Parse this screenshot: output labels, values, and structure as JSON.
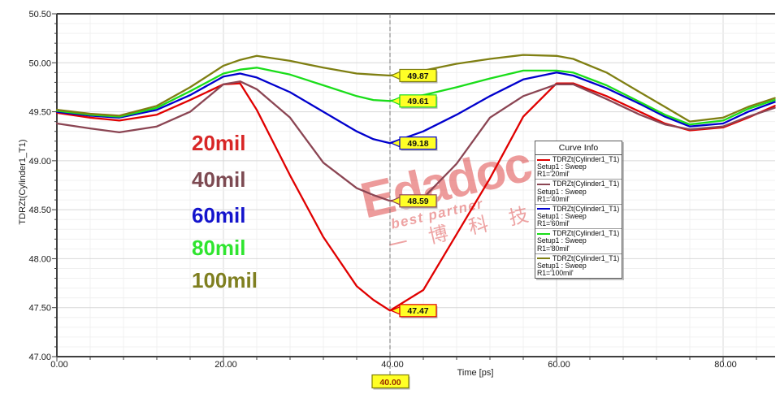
{
  "chart_data": {
    "type": "line",
    "title": "",
    "xlabel": "Time [ps]",
    "ylabel": "TDRZt(Cylinder1_T1)",
    "xlim": [
      0,
      86.2
    ],
    "ylim": [
      47.0,
      50.5
    ],
    "grid": true,
    "legend_position": "right-middle",
    "x_ticks": [
      0,
      20,
      40,
      60,
      80
    ],
    "x_tick_labels": [
      "0.00",
      "20.00",
      "40.00",
      "60.00",
      "80.00"
    ],
    "y_ticks": [
      50.5,
      50.0,
      49.5,
      49.0,
      48.5,
      48.0,
      47.5,
      47.0
    ],
    "y_tick_labels": [
      "50.50",
      "50.00",
      "49.50",
      "49.00",
      "48.50",
      "48.00",
      "47.50",
      "47.00"
    ],
    "marker": {
      "x": 40,
      "x_label": "40.00"
    },
    "x": [
      0,
      4,
      7.5,
      12,
      16,
      20,
      22,
      24,
      28,
      32,
      36,
      38,
      40,
      44,
      48,
      52,
      56,
      60,
      62,
      66,
      70,
      73,
      76,
      80,
      83,
      86.2
    ],
    "series": [
      {
        "id": "20mil",
        "color": "#e00000",
        "label_color": "#d82626",
        "annotation": "20mil",
        "marker_label": "47.47",
        "legend": {
          "name": "TDRZt(Cylinder1_T1)",
          "setup": "Setup1 : Sweep",
          "variation": "R1='20mil'"
        },
        "values": [
          49.49,
          49.44,
          49.41,
          49.47,
          49.62,
          49.78,
          49.79,
          49.52,
          48.85,
          48.22,
          47.72,
          47.58,
          47.47,
          47.68,
          48.25,
          48.82,
          49.45,
          49.79,
          49.79,
          49.66,
          49.5,
          49.38,
          49.31,
          49.34,
          49.44,
          49.56
        ]
      },
      {
        "id": "40mil",
        "color": "#8b4553",
        "label_color": "#7d4a52",
        "annotation": "40mil",
        "marker_label": "48.59",
        "legend": {
          "name": "TDRZt(Cylinder1_T1)",
          "setup": "Setup1 : Sweep",
          "variation": "R1='40mil'"
        },
        "values": [
          49.38,
          49.33,
          49.29,
          49.35,
          49.5,
          49.78,
          49.81,
          49.73,
          49.44,
          48.98,
          48.72,
          48.65,
          48.59,
          48.62,
          48.97,
          49.44,
          49.66,
          49.78,
          49.78,
          49.63,
          49.47,
          49.37,
          49.32,
          49.35,
          49.45,
          49.54
        ]
      },
      {
        "id": "60mil",
        "color": "#0000cd",
        "label_color": "#1414cc",
        "annotation": "60mil",
        "marker_label": "49.18",
        "legend": {
          "name": "TDRZt(Cylinder1_T1)",
          "setup": "Setup1 : Sweep",
          "variation": "R1='60mil'"
        },
        "values": [
          49.5,
          49.46,
          49.44,
          49.52,
          49.67,
          49.86,
          49.89,
          49.85,
          49.7,
          49.5,
          49.3,
          49.22,
          49.18,
          49.3,
          49.47,
          49.66,
          49.83,
          49.9,
          49.87,
          49.74,
          49.58,
          49.45,
          49.35,
          49.38,
          49.5,
          49.6
        ]
      },
      {
        "id": "80mil",
        "color": "#1add1a",
        "label_color": "#2fe52f",
        "annotation": "80mil",
        "marker_label": "49.61",
        "legend": {
          "name": "TDRZt(Cylinder1_T1)",
          "setup": "Setup1 : Sweep",
          "variation": "R1='80mil'"
        },
        "values": [
          49.51,
          49.47,
          49.45,
          49.54,
          49.71,
          49.89,
          49.93,
          49.95,
          49.88,
          49.77,
          49.66,
          49.62,
          49.61,
          49.67,
          49.75,
          49.84,
          49.92,
          49.92,
          49.9,
          49.77,
          49.6,
          49.47,
          49.37,
          49.41,
          49.53,
          49.62
        ]
      },
      {
        "id": "100mil",
        "color": "#7f7f12",
        "label_color": "#7f7f20",
        "annotation": "100mil",
        "marker_label": "49.87",
        "legend": {
          "name": "TDRZt(Cylinder1_T1)",
          "setup": "Setup1 : Sweep",
          "variation": "R1='100mil'"
        },
        "values": [
          49.52,
          49.48,
          49.46,
          49.56,
          49.75,
          49.97,
          50.03,
          50.07,
          50.02,
          49.95,
          49.89,
          49.88,
          49.87,
          49.92,
          49.99,
          50.04,
          50.08,
          50.07,
          50.04,
          49.9,
          49.7,
          49.55,
          49.4,
          49.44,
          49.55,
          49.64
        ]
      }
    ]
  },
  "legend": {
    "title": "Curve Info"
  },
  "watermark": {
    "brand": "Edadoc",
    "tagline": "best partner",
    "cjk": "一 博 科 技"
  }
}
